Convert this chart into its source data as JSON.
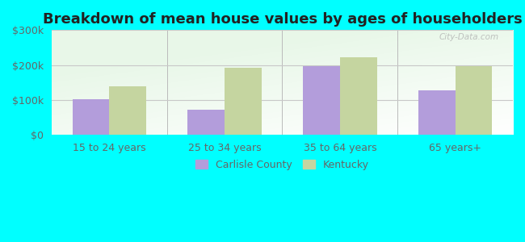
{
  "title": "Breakdown of mean house values by ages of householders",
  "categories": [
    "15 to 24 years",
    "25 to 34 years",
    "35 to 64 years",
    "65 years+"
  ],
  "carlisle_values": [
    103000,
    72000,
    196000,
    128000
  ],
  "kentucky_values": [
    140000,
    193000,
    222000,
    197000
  ],
  "bar_color_carlisle": "#b39ddb",
  "bar_color_kentucky": "#c5d5a0",
  "background_color": "#00ffff",
  "ylim": [
    0,
    300000
  ],
  "yticks": [
    0,
    100000,
    200000,
    300000
  ],
  "ytick_labels": [
    "$0",
    "$100k",
    "$200k",
    "$300k"
  ],
  "legend_labels": [
    "Carlisle County",
    "Kentucky"
  ],
  "watermark": "City-Data.com",
  "grid_color": "#c8c8c8",
  "title_fontsize": 13,
  "axis_label_fontsize": 9,
  "legend_fontsize": 9,
  "tick_label_color": "#666666"
}
